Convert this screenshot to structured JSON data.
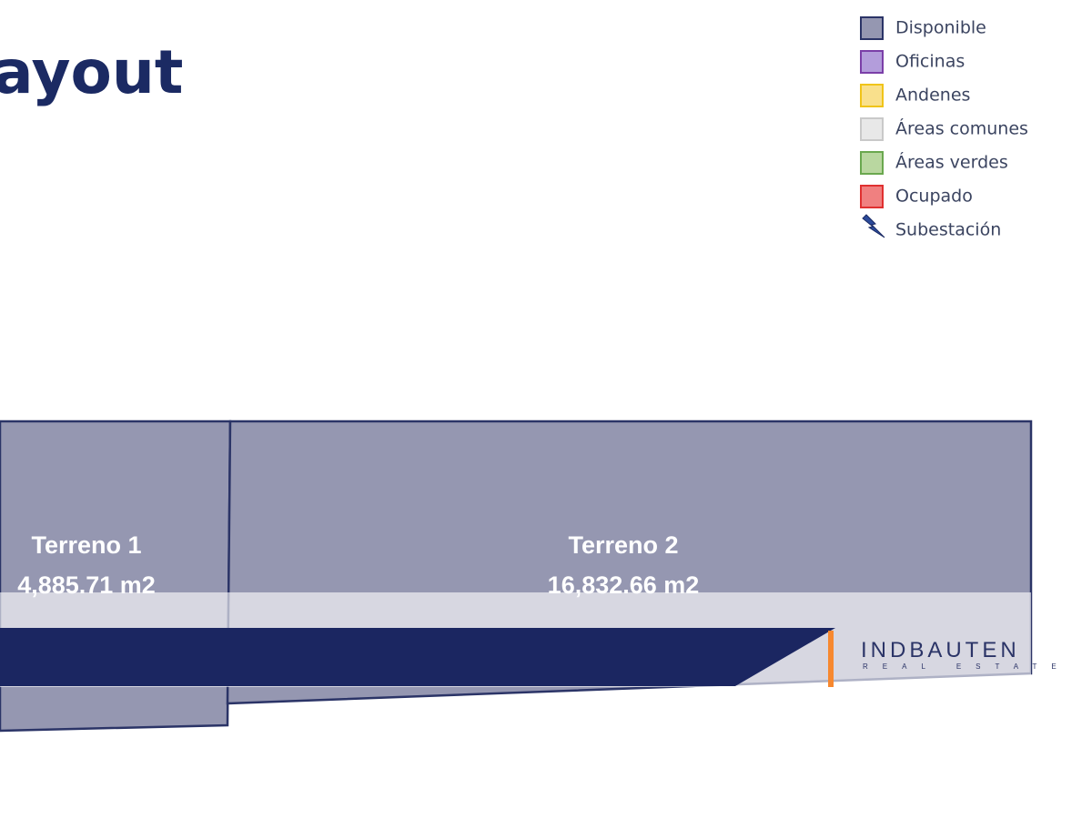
{
  "header": {
    "title": "ayout"
  },
  "legend": {
    "items": [
      "Disponible",
      "Oficinas",
      "Andenes",
      "Áreas comunes",
      "Áreas verdes",
      "Ocupado",
      "Subestación"
    ]
  },
  "lots": [
    {
      "name": "Terreno 1",
      "area": "4,885.71 m2"
    },
    {
      "name": "Terreno 2",
      "area": "16,832.66 m2"
    }
  ],
  "logo": {
    "name": "INDBAUTEN",
    "tagline": "REAL ESTATE"
  }
}
